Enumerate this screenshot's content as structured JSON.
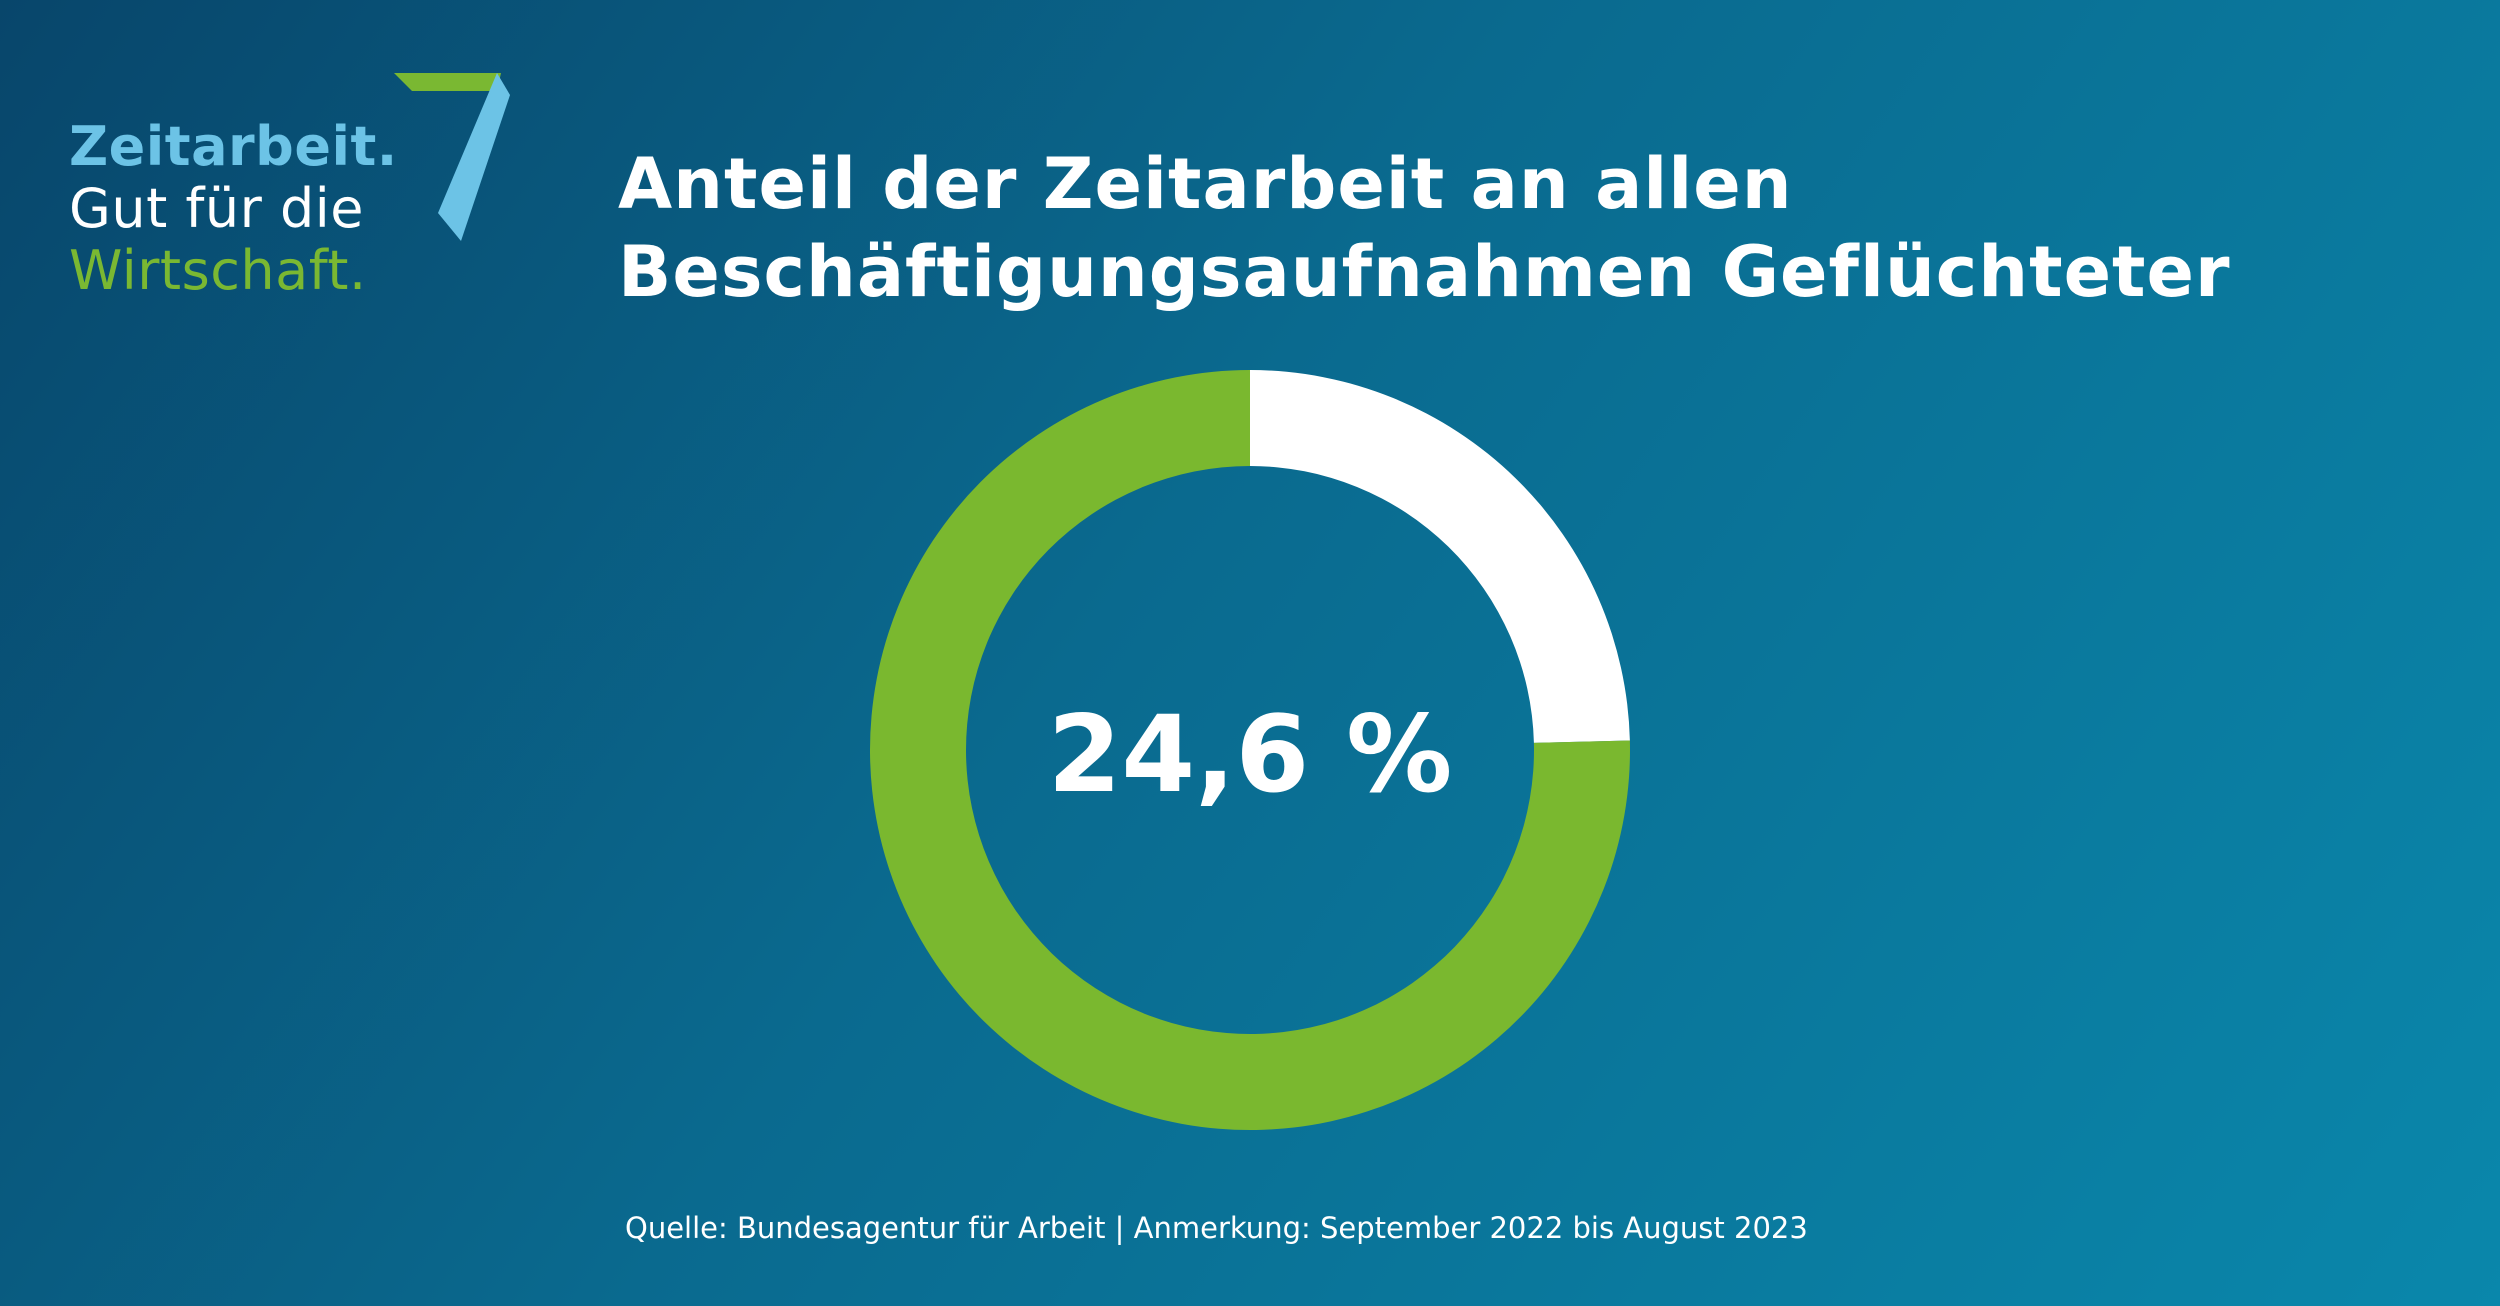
{
  "logo": {
    "line1": "Zeitarbeit.",
    "line2": "Gut für die",
    "line3": "Wirtschaft.",
    "icon": "seven-mark-icon"
  },
  "title": {
    "line1": "Anteil der Zeitarbeit an allen",
    "line2": "Beschäftigungsaufnahmen Geflüchteter"
  },
  "chart_data": {
    "type": "pie",
    "style": "donut",
    "title": "Anteil der Zeitarbeit an allen Beschäftigungsaufnahmen Geflüchteter",
    "center_label": "24,6 %",
    "slices": [
      {
        "value": 24.6,
        "color": "#ffffff"
      },
      {
        "value": 75.4,
        "color": "#7ab82f"
      }
    ]
  },
  "source": "Quelle: Bundesagentur für Arbeit | Anmerkung: September 2022 bis August 2023",
  "colors": {
    "background_start": "#08466b",
    "background_end": "#0a87ab",
    "accent_green": "#7ab82f",
    "accent_blue": "#6cc3e6"
  }
}
